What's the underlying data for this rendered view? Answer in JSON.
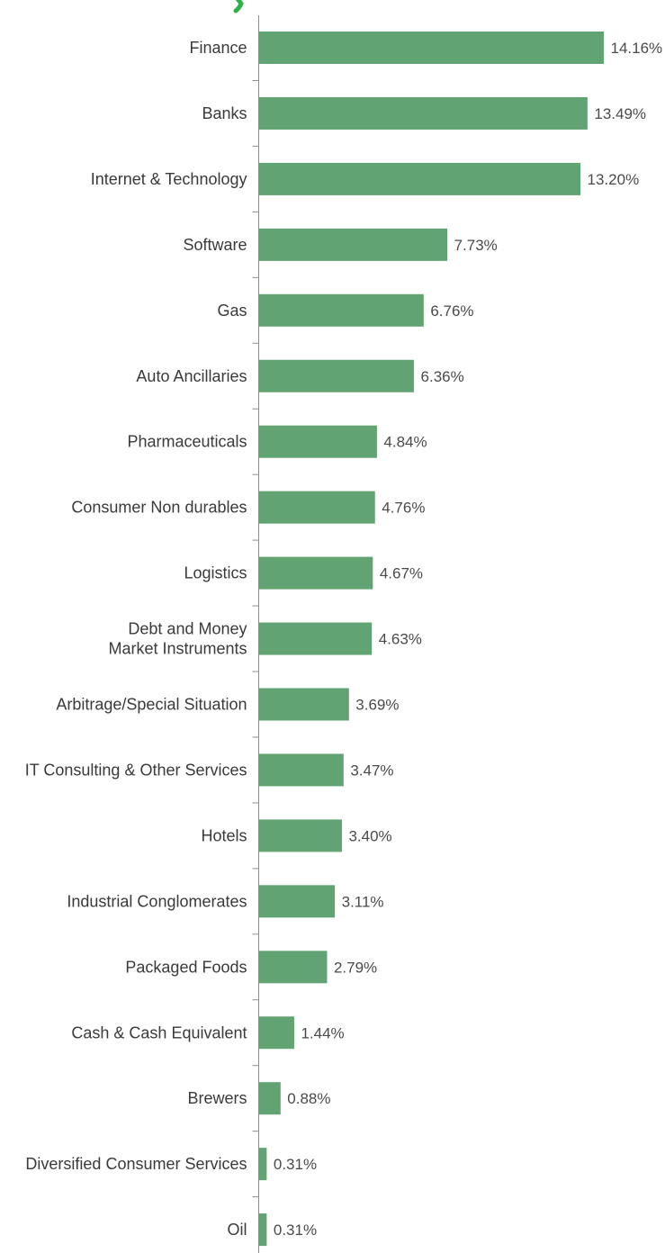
{
  "colors": {
    "bar": "#62a373",
    "title_accent": "#2bb34a"
  },
  "chart_data": {
    "type": "bar",
    "orientation": "horizontal",
    "categories": [
      "Finance",
      "Banks",
      "Internet & Technology",
      "Software",
      "Gas",
      "Auto Ancillaries",
      "Pharmaceuticals",
      "Consumer Non durables",
      "Logistics",
      [
        "Debt and Money",
        "Market Instruments"
      ],
      "Arbitrage/Special Situation",
      "IT Consulting & Other Services",
      "Hotels",
      "Industrial Conglomerates",
      "Packaged Foods",
      "Cash & Cash Equivalent",
      "Brewers",
      "Diversified Consumer Services",
      "Oil"
    ],
    "values": [
      14.16,
      13.49,
      13.2,
      7.73,
      6.76,
      6.36,
      4.84,
      4.76,
      4.67,
      4.63,
      3.69,
      3.47,
      3.4,
      3.11,
      2.79,
      1.44,
      0.88,
      0.31,
      0.31
    ],
    "value_labels": [
      "14.16%",
      "13.49%",
      "13.20%",
      "7.73%",
      "6.76%",
      "6.36%",
      "4.84%",
      "4.76%",
      "4.67%",
      "4.63%",
      "3.69%",
      "3.47%",
      "3.40%",
      "3.11%",
      "2.79%",
      "1.44%",
      "0.88%",
      "0.31%",
      "0.31%"
    ],
    "xlim": [
      0,
      14.16
    ],
    "grid": false,
    "legend": "none"
  }
}
